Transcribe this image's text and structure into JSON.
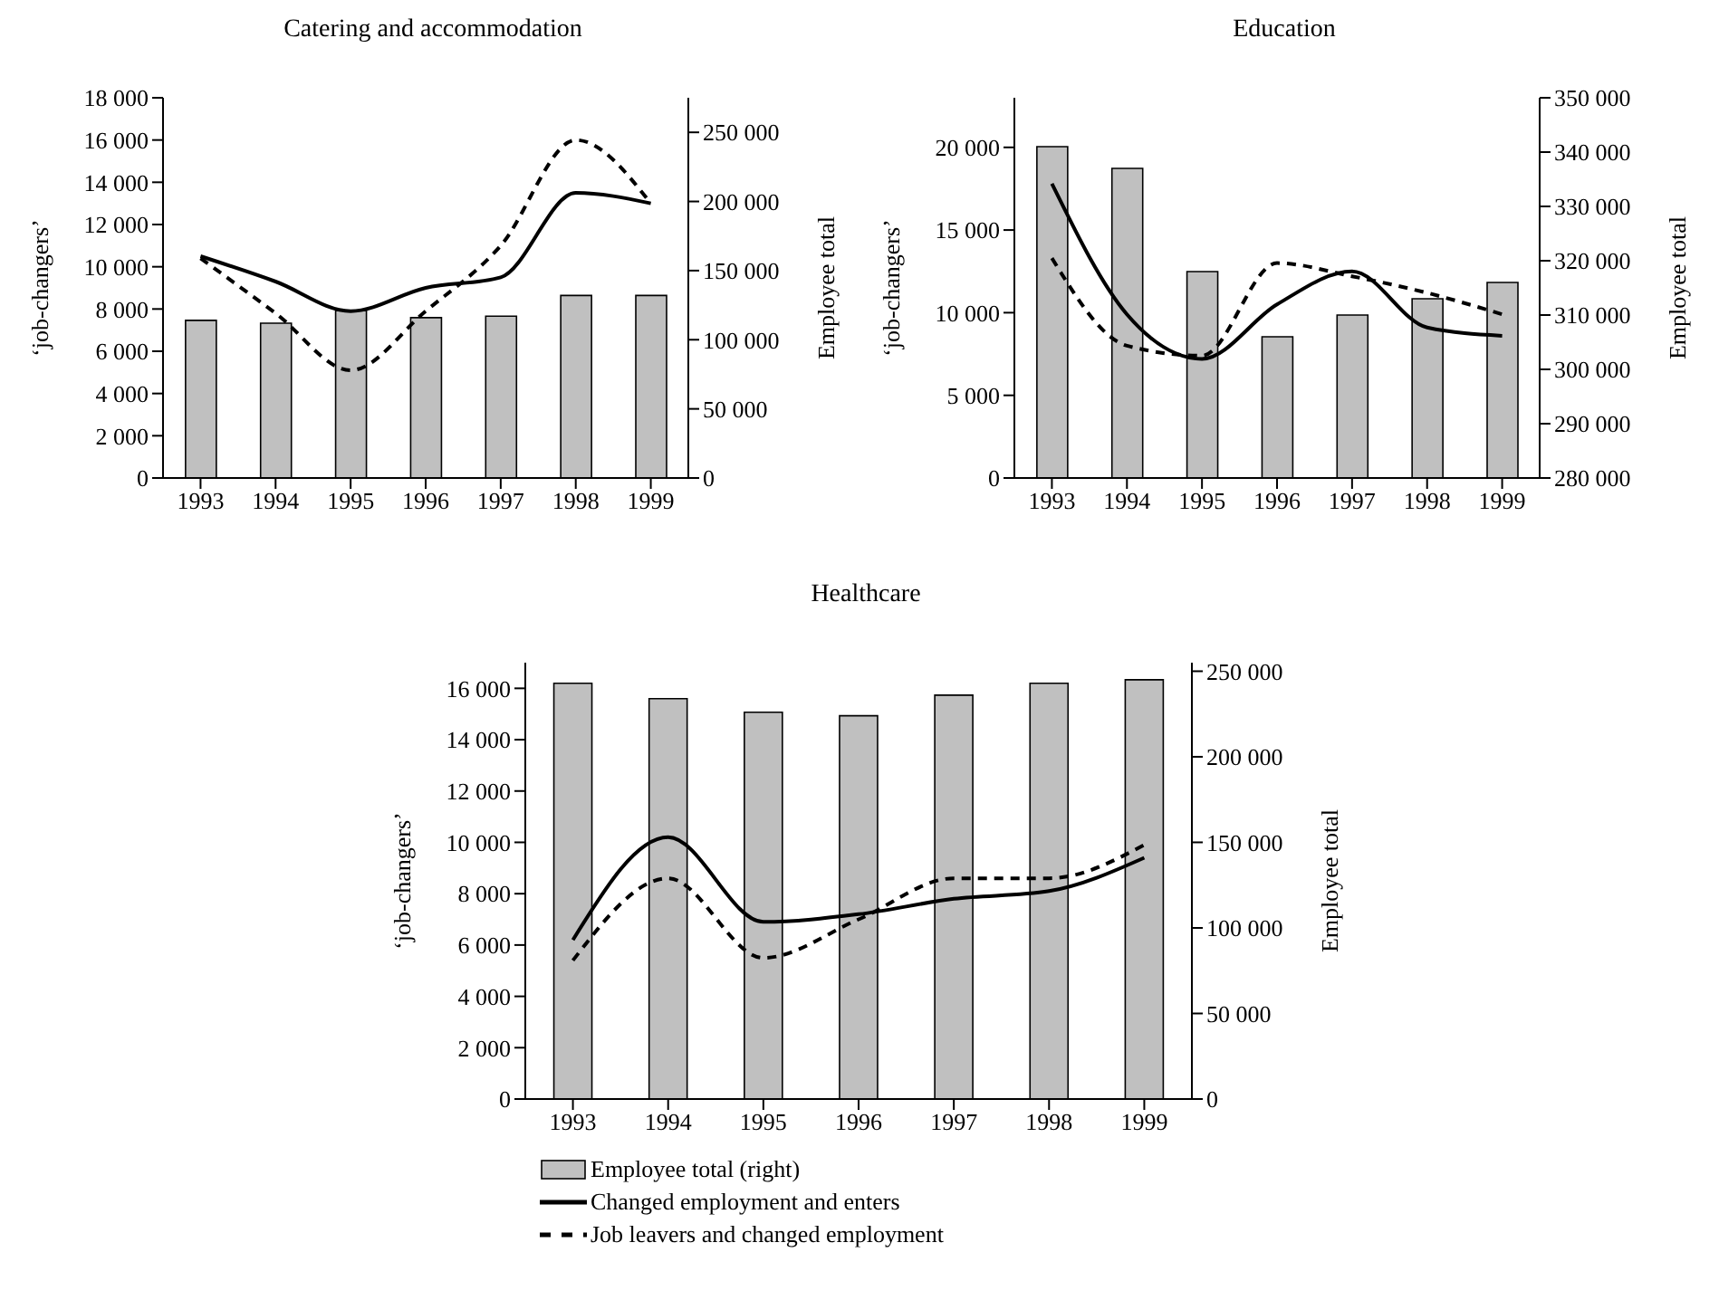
{
  "chart_data": [
    {
      "type": "bar",
      "title": "Catering and accommodation",
      "ylabel": "‘job-changers’",
      "y2label": "Employee total",
      "categories": [
        "1993",
        "1994",
        "1995",
        "1996",
        "1997",
        "1998",
        "1999"
      ],
      "ylim": [
        0,
        18000
      ],
      "yticks": [
        {
          "value": 0,
          "label": "0"
        },
        {
          "value": 2000,
          "label": "2 000"
        },
        {
          "value": 4000,
          "label": "4 000"
        },
        {
          "value": 6000,
          "label": "6 000"
        },
        {
          "value": 8000,
          "label": "8 000"
        },
        {
          "value": 10000,
          "label": "10 000"
        },
        {
          "value": 12000,
          "label": "12 000"
        },
        {
          "value": 14000,
          "label": "14 000"
        },
        {
          "value": 16000,
          "label": "16 000"
        },
        {
          "value": 18000,
          "label": "18 000"
        }
      ],
      "y2lim": [
        0,
        275000
      ],
      "y2ticks": [
        {
          "value": 0,
          "label": "0"
        },
        {
          "value": 50000,
          "label": "50 000"
        },
        {
          "value": 100000,
          "label": "100 000"
        },
        {
          "value": 150000,
          "label": "150 000"
        },
        {
          "value": 200000,
          "label": "200 000"
        },
        {
          "value": 250000,
          "label": "250 000"
        }
      ],
      "grid": false,
      "legend": false,
      "series": [
        {
          "axis": "y2",
          "color": "#c0c0c0",
          "values": [
            114000,
            112000,
            121000,
            116000,
            117000,
            132000,
            132000
          ]
        },
        {
          "type": "line",
          "line_style": "solid",
          "color": "#000000",
          "values": [
            10500,
            9300,
            7900,
            9000,
            9500,
            13500,
            13000
          ]
        },
        {
          "type": "line",
          "line_style": "dashed",
          "color": "#000000",
          "values": [
            10400,
            7800,
            5100,
            7900,
            11000,
            16000,
            13000
          ]
        }
      ]
    },
    {
      "type": "bar",
      "title": "Education",
      "ylabel": "‘job-changers’",
      "y2label": "Employee total",
      "categories": [
        "1993",
        "1994",
        "1995",
        "1996",
        "1997",
        "1998",
        "1999"
      ],
      "ylim": [
        0,
        23000
      ],
      "yticks": [
        {
          "value": 0,
          "label": "0"
        },
        {
          "value": 5000,
          "label": "5 000"
        },
        {
          "value": 10000,
          "label": "10 000"
        },
        {
          "value": 15000,
          "label": "15 000"
        },
        {
          "value": 20000,
          "label": "20 000"
        }
      ],
      "y2lim": [
        280000,
        350000
      ],
      "y2ticks": [
        {
          "value": 280000,
          "label": "280 000"
        },
        {
          "value": 290000,
          "label": "290 000"
        },
        {
          "value": 300000,
          "label": "300 000"
        },
        {
          "value": 310000,
          "label": "310 000"
        },
        {
          "value": 320000,
          "label": "320 000"
        },
        {
          "value": 330000,
          "label": "330 000"
        },
        {
          "value": 340000,
          "label": "340 000"
        },
        {
          "value": 350000,
          "label": "350 000"
        }
      ],
      "grid": false,
      "legend": false,
      "series": [
        {
          "axis": "y2",
          "color": "#c0c0c0",
          "values": [
            341000,
            337000,
            318000,
            306000,
            310000,
            313000,
            316000
          ]
        },
        {
          "type": "line",
          "line_style": "solid",
          "color": "#000000",
          "values": [
            17800,
            9900,
            7200,
            10500,
            12500,
            9100,
            8600
          ]
        },
        {
          "type": "line",
          "line_style": "dashed",
          "color": "#000000",
          "values": [
            13300,
            8000,
            7400,
            13000,
            12200,
            11200,
            9900
          ]
        }
      ]
    },
    {
      "type": "bar",
      "title": "Healthcare",
      "ylabel": "‘job-changers’",
      "y2label": "Employee total",
      "categories": [
        "1993",
        "1994",
        "1995",
        "1996",
        "1997",
        "1998",
        "1999"
      ],
      "ylim": [
        0,
        17000
      ],
      "yticks": [
        {
          "value": 0,
          "label": "0"
        },
        {
          "value": 2000,
          "label": "2 000"
        },
        {
          "value": 4000,
          "label": "4 000"
        },
        {
          "value": 6000,
          "label": "6 000"
        },
        {
          "value": 8000,
          "label": "8 000"
        },
        {
          "value": 10000,
          "label": "10 000"
        },
        {
          "value": 12000,
          "label": "12 000"
        },
        {
          "value": 14000,
          "label": "14 000"
        },
        {
          "value": 16000,
          "label": "16 000"
        }
      ],
      "y2lim": [
        0,
        255000
      ],
      "y2ticks": [
        {
          "value": 0,
          "label": "0"
        },
        {
          "value": 50000,
          "label": "50 000"
        },
        {
          "value": 100000,
          "label": "100 000"
        },
        {
          "value": 150000,
          "label": "150 000"
        },
        {
          "value": 200000,
          "label": "200 000"
        },
        {
          "value": 250000,
          "label": "250 000"
        }
      ],
      "grid": false,
      "legend": "bottom",
      "series": [
        {
          "name": "Employee total (right)",
          "axis": "y2",
          "color": "#c0c0c0",
          "values": [
            243000,
            234000,
            226000,
            224000,
            236000,
            243000,
            245000
          ]
        },
        {
          "name": "Changed employment and enters",
          "type": "line",
          "line_style": "solid",
          "color": "#000000",
          "values": [
            6200,
            10200,
            6900,
            7200,
            7800,
            8100,
            9400
          ]
        },
        {
          "name": "Job leavers and changed employment",
          "type": "line",
          "line_style": "dashed",
          "color": "#000000",
          "values": [
            5400,
            8600,
            5500,
            7000,
            8600,
            8600,
            9900
          ]
        }
      ]
    }
  ]
}
